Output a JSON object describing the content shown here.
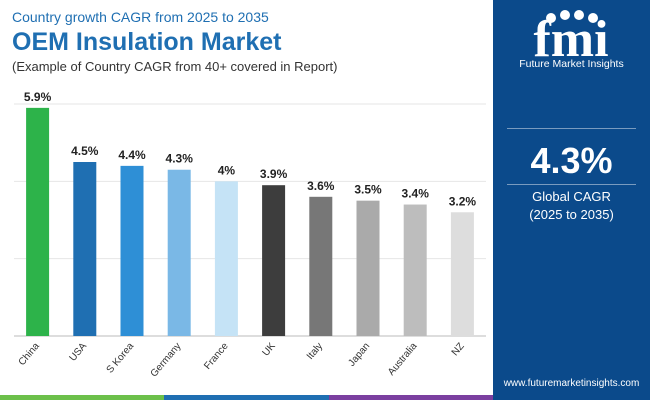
{
  "header": {
    "subtitle": "Country growth CAGR from 2025 to 2035",
    "title": "OEM Insulation Market",
    "note": "(Example of Country CAGR from 40+ covered in Report)"
  },
  "sidebar": {
    "brand": "Future Market Insights",
    "logo_text": "fmi",
    "cagr_value": "4.3%",
    "cagr_label": "Global CAGR",
    "cagr_period": "(2025 to 2035)",
    "url": "www.futuremarketinsights.com"
  },
  "colors": {
    "title": "#1f6fb2",
    "sidebar_bg": "#0b4a8b",
    "strip": [
      "#6cc04a",
      "#1f6fb2",
      "#7b3fa0"
    ]
  },
  "chart_data": {
    "type": "bar",
    "title": "OEM Insulation Market",
    "xlabel": "",
    "ylabel": "",
    "ylim": [
      0,
      6
    ],
    "grid": true,
    "categories": [
      "China",
      "USA",
      "S Korea",
      "Germany",
      "France",
      "UK",
      "Italy",
      "Japan",
      "Australia",
      "NZ"
    ],
    "values": [
      5.9,
      4.5,
      4.4,
      4.3,
      4.0,
      3.9,
      3.6,
      3.5,
      3.4,
      3.2
    ],
    "labels": [
      "5.9%",
      "4.5%",
      "4.4%",
      "4.3%",
      "4%",
      "3.9%",
      "3.6%",
      "3.5%",
      "3.4%",
      "3.2%"
    ],
    "bar_colors": [
      "#2db34a",
      "#1f6fb2",
      "#2e8fd6",
      "#7ab8e6",
      "#c5e3f6",
      "#3d3d3d",
      "#777777",
      "#aaaaaa",
      "#bdbdbd",
      "#dddddd"
    ]
  }
}
